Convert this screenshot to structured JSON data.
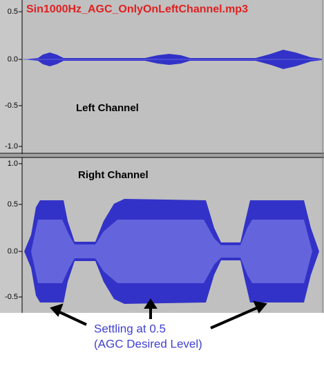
{
  "title": "Sin1000Hz_AGC_OnlyOnLeftChannel.mp3",
  "tracks": [
    {
      "label": "Left Channel",
      "ticks": [
        "0.5",
        "0.0",
        "-0.5",
        "-1.0"
      ]
    },
    {
      "label": "Right Channel",
      "ticks": [
        "1.0",
        "0.5",
        "0.0",
        "-0.5"
      ]
    }
  ],
  "annotation": {
    "line1": "Settling at 0.5",
    "line2": "(AGC Desired Level)"
  }
}
